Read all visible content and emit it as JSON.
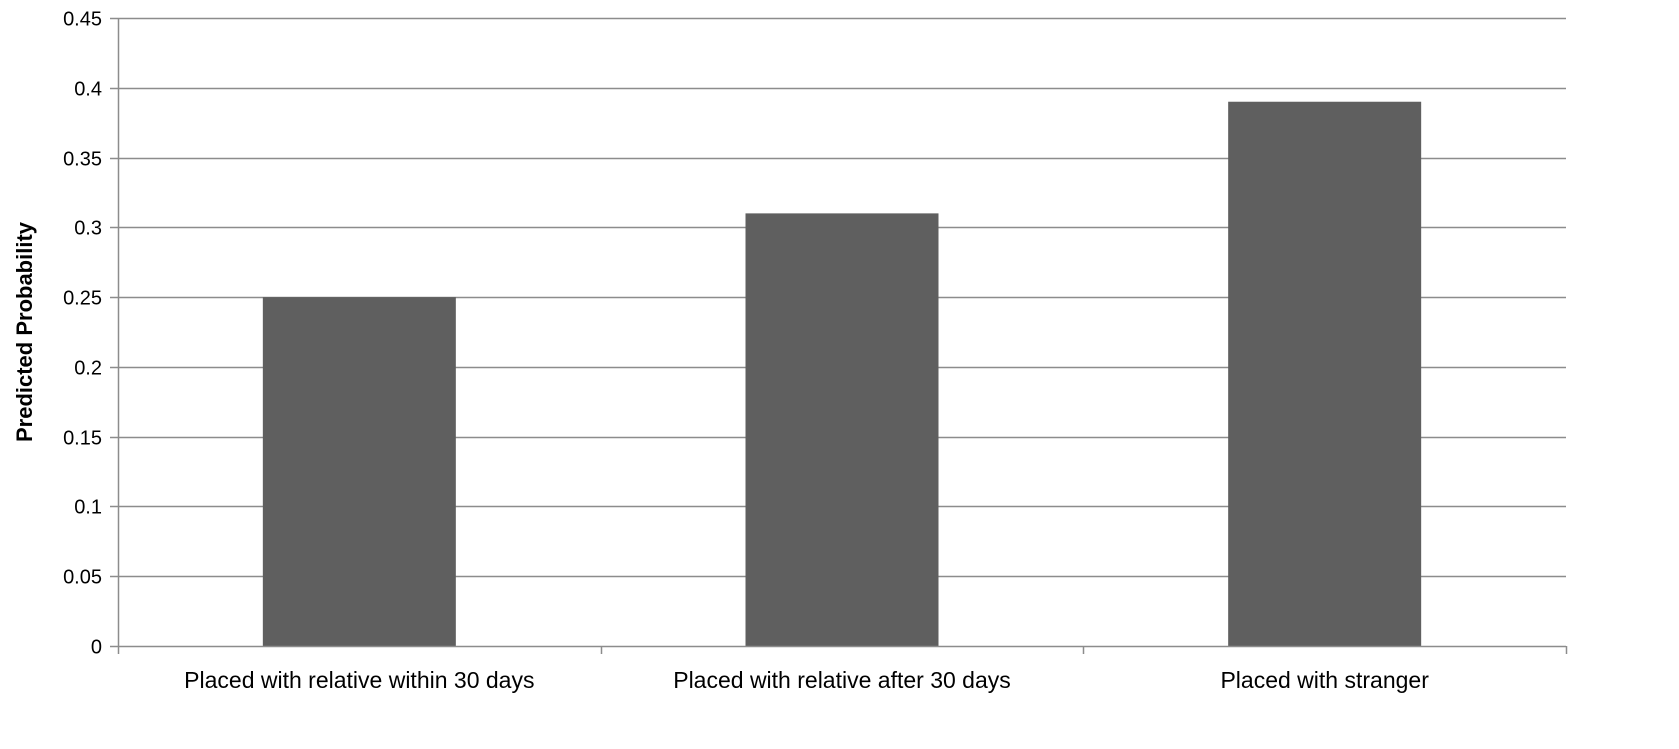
{
  "chart_data": {
    "type": "bar",
    "categories": [
      "Placed with relative within 30 days",
      "Placed with relative after 30 days",
      "Placed with stranger"
    ],
    "values": [
      0.25,
      0.31,
      0.39
    ],
    "title": "",
    "xlabel": "",
    "ylabel": "Predicted Probability",
    "ylim": [
      0,
      0.45
    ],
    "yticks": [
      "0",
      "0.05",
      "0.1",
      "0.15",
      "0.2",
      "0.25",
      "0.3",
      "0.35",
      "0.4",
      "0.45"
    ],
    "grid": true,
    "legend": "none",
    "colors": {
      "bar": "#5f5f5f",
      "grid": "#8c8c8c",
      "axis": "#8c8c8c"
    }
  }
}
